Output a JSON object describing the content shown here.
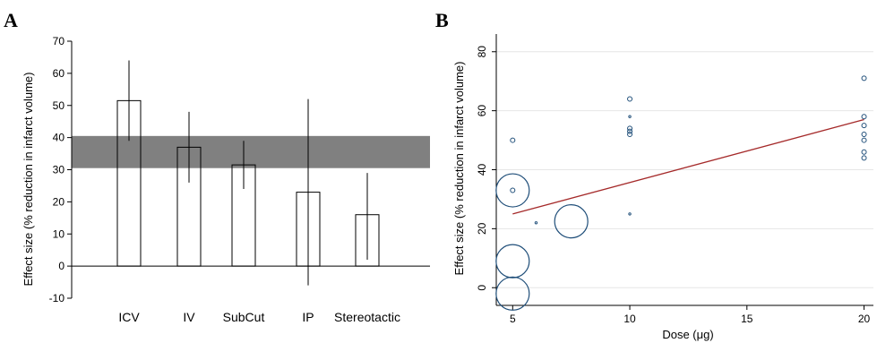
{
  "chart_data": [
    {
      "panel": "A",
      "type": "bar",
      "ylabel": "Effect size (% reduction in infarct volume)",
      "ylim": [
        -10,
        70
      ],
      "yticks": [
        -10,
        0,
        10,
        20,
        30,
        40,
        50,
        60,
        70
      ],
      "categories": [
        "ICV",
        "IV",
        "SubCut",
        "IP",
        "Stereotactic"
      ],
      "values": [
        51.5,
        37,
        31.5,
        23,
        16
      ],
      "error_low": [
        39,
        26,
        24,
        -6,
        2
      ],
      "error_high": [
        64,
        48,
        39,
        52,
        29
      ],
      "pooled_band": [
        30.5,
        40.5
      ],
      "colors": {
        "bar_fill": "#ffffff",
        "bar_edge": "#000000",
        "band": "#808080"
      }
    },
    {
      "panel": "B",
      "type": "scatter",
      "xlabel": "Dose (μg)",
      "ylabel": "Effect size (% reduction in infarct volume)",
      "xlim": [
        4.3,
        20.4
      ],
      "ylim": [
        -6,
        86
      ],
      "xticks": [
        5,
        10,
        15,
        20
      ],
      "yticks": [
        0,
        20,
        40,
        60,
        80
      ],
      "grid": true,
      "points": [
        {
          "x": 5,
          "y": 50,
          "size": "small"
        },
        {
          "x": 5,
          "y": 33,
          "size": "small"
        },
        {
          "x": 5,
          "y": 33,
          "size": "large"
        },
        {
          "x": 5,
          "y": 9,
          "size": "large"
        },
        {
          "x": 5,
          "y": -2,
          "size": "large"
        },
        {
          "x": 6,
          "y": 22,
          "size": "tiny"
        },
        {
          "x": 7.5,
          "y": 22.5,
          "size": "large"
        },
        {
          "x": 10,
          "y": 64,
          "size": "small"
        },
        {
          "x": 10,
          "y": 58,
          "size": "tiny"
        },
        {
          "x": 10,
          "y": 54,
          "size": "small"
        },
        {
          "x": 10,
          "y": 53,
          "size": "small"
        },
        {
          "x": 10,
          "y": 52,
          "size": "small"
        },
        {
          "x": 10,
          "y": 25,
          "size": "tiny"
        },
        {
          "x": 20,
          "y": 71,
          "size": "small"
        },
        {
          "x": 20,
          "y": 58,
          "size": "small"
        },
        {
          "x": 20,
          "y": 55,
          "size": "small"
        },
        {
          "x": 20,
          "y": 52,
          "size": "small"
        },
        {
          "x": 20,
          "y": 50,
          "size": "small"
        },
        {
          "x": 20,
          "y": 46,
          "size": "small"
        },
        {
          "x": 20,
          "y": 44,
          "size": "small"
        }
      ],
      "fit_line": {
        "x": [
          5,
          20
        ],
        "y": [
          25,
          57
        ]
      },
      "colors": {
        "marker": "#1f4e79",
        "fit": "#a52a2a",
        "grid": "#e6e6e6"
      }
    }
  ]
}
